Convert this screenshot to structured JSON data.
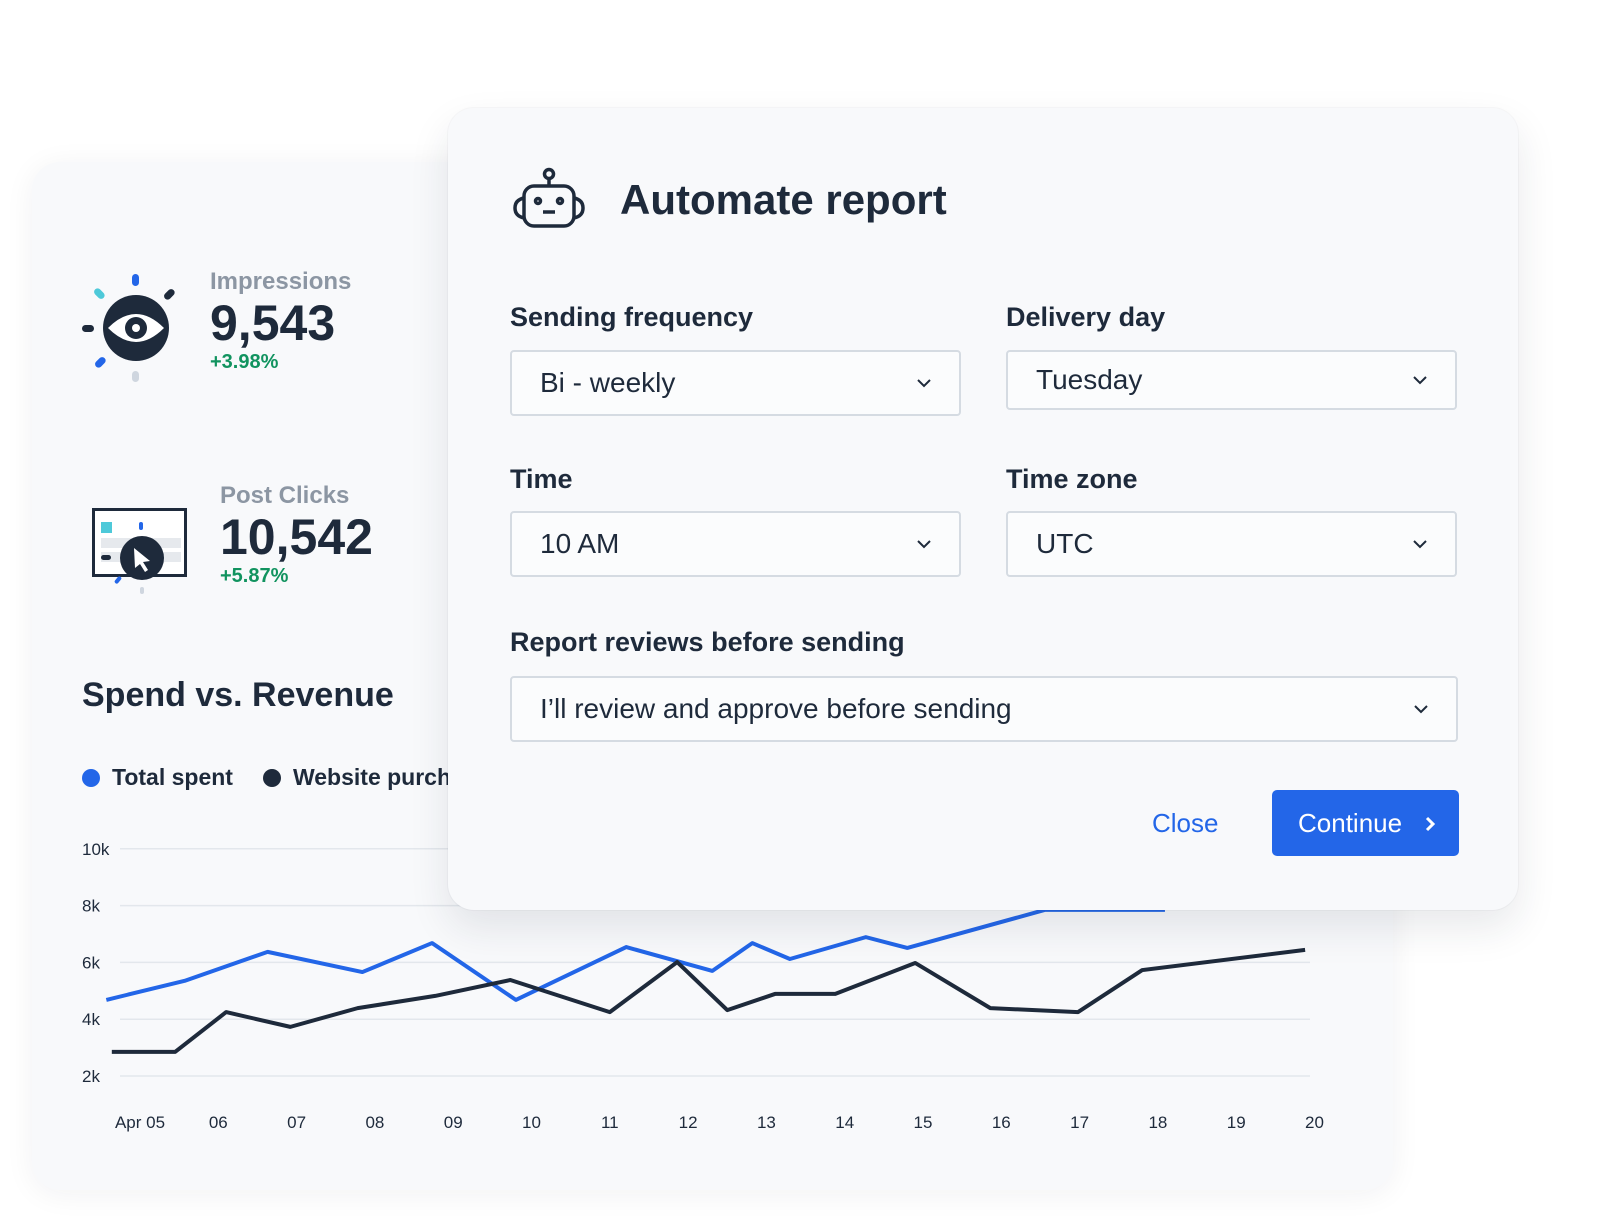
{
  "dashboard": {
    "metrics": [
      {
        "label": "Impressions",
        "value": "9,543",
        "delta": "+3.98%",
        "icon": "eye-icon"
      },
      {
        "label": "Post Clicks",
        "value": "10,542",
        "delta": "+5.87%",
        "icon": "cursor-click-icon"
      }
    ],
    "chart_title": "Spend vs. Revenue"
  },
  "chart_data": {
    "type": "line",
    "title": "Spend vs. Revenue",
    "ylim": [
      2000,
      10000
    ],
    "yticks": [
      "10k",
      "8k",
      "6k",
      "4k",
      "2k"
    ],
    "ytick_values": [
      10000,
      8000,
      6000,
      4000,
      2000
    ],
    "xticks": [
      "Apr 05",
      "06",
      "07",
      "08",
      "09",
      "10",
      "11",
      "12",
      "13",
      "14",
      "15",
      "16",
      "17",
      "18",
      "19",
      "20"
    ],
    "xtick_values": [
      5,
      6,
      7,
      8,
      9,
      10,
      11,
      12,
      13,
      14,
      15,
      16,
      17,
      18,
      19,
      20
    ],
    "grid": true,
    "legend_position": "top-left",
    "series": [
      {
        "name": "Total spent",
        "color": "#2366e8",
        "x": [
          4.57,
          5.57,
          6.63,
          7.84,
          8.73,
          9.8,
          11.21,
          12.31,
          12.82,
          13.3,
          14.27,
          14.8,
          16.56,
          18.09
        ],
        "y": [
          4680,
          5350,
          6370,
          5660,
          6680,
          4680,
          6540,
          5700,
          6680,
          6120,
          6890,
          6510,
          7850,
          7850
        ]
      },
      {
        "name": "Website purch",
        "color": "#1e2a3b",
        "x": [
          4.64,
          5.45,
          6.1,
          6.92,
          7.78,
          8.77,
          9.73,
          11.0,
          11.86,
          12.5,
          13.11,
          13.88,
          14.9,
          15.86,
          16.98,
          17.8,
          19.88
        ],
        "y": [
          2850,
          2850,
          4250,
          3730,
          4390,
          4820,
          5380,
          4250,
          6010,
          4320,
          4890,
          4890,
          5980,
          4390,
          4250,
          5730,
          6440
        ]
      }
    ]
  },
  "dialog": {
    "title": "Automate report",
    "icon": "robot-icon",
    "fields": {
      "frequency": {
        "label": "Sending frequency",
        "value": "Bi - weekly"
      },
      "day": {
        "label": "Delivery day",
        "value": "Tuesday"
      },
      "time": {
        "label": "Time",
        "value": "10 AM"
      },
      "timezone": {
        "label": "Time zone",
        "value": "UTC"
      },
      "review": {
        "label": "Report reviews before sending",
        "value": "I’ll review and approve before sending"
      }
    },
    "close_label": "Close",
    "continue_label": "Continue",
    "accent": "#2366e8"
  }
}
